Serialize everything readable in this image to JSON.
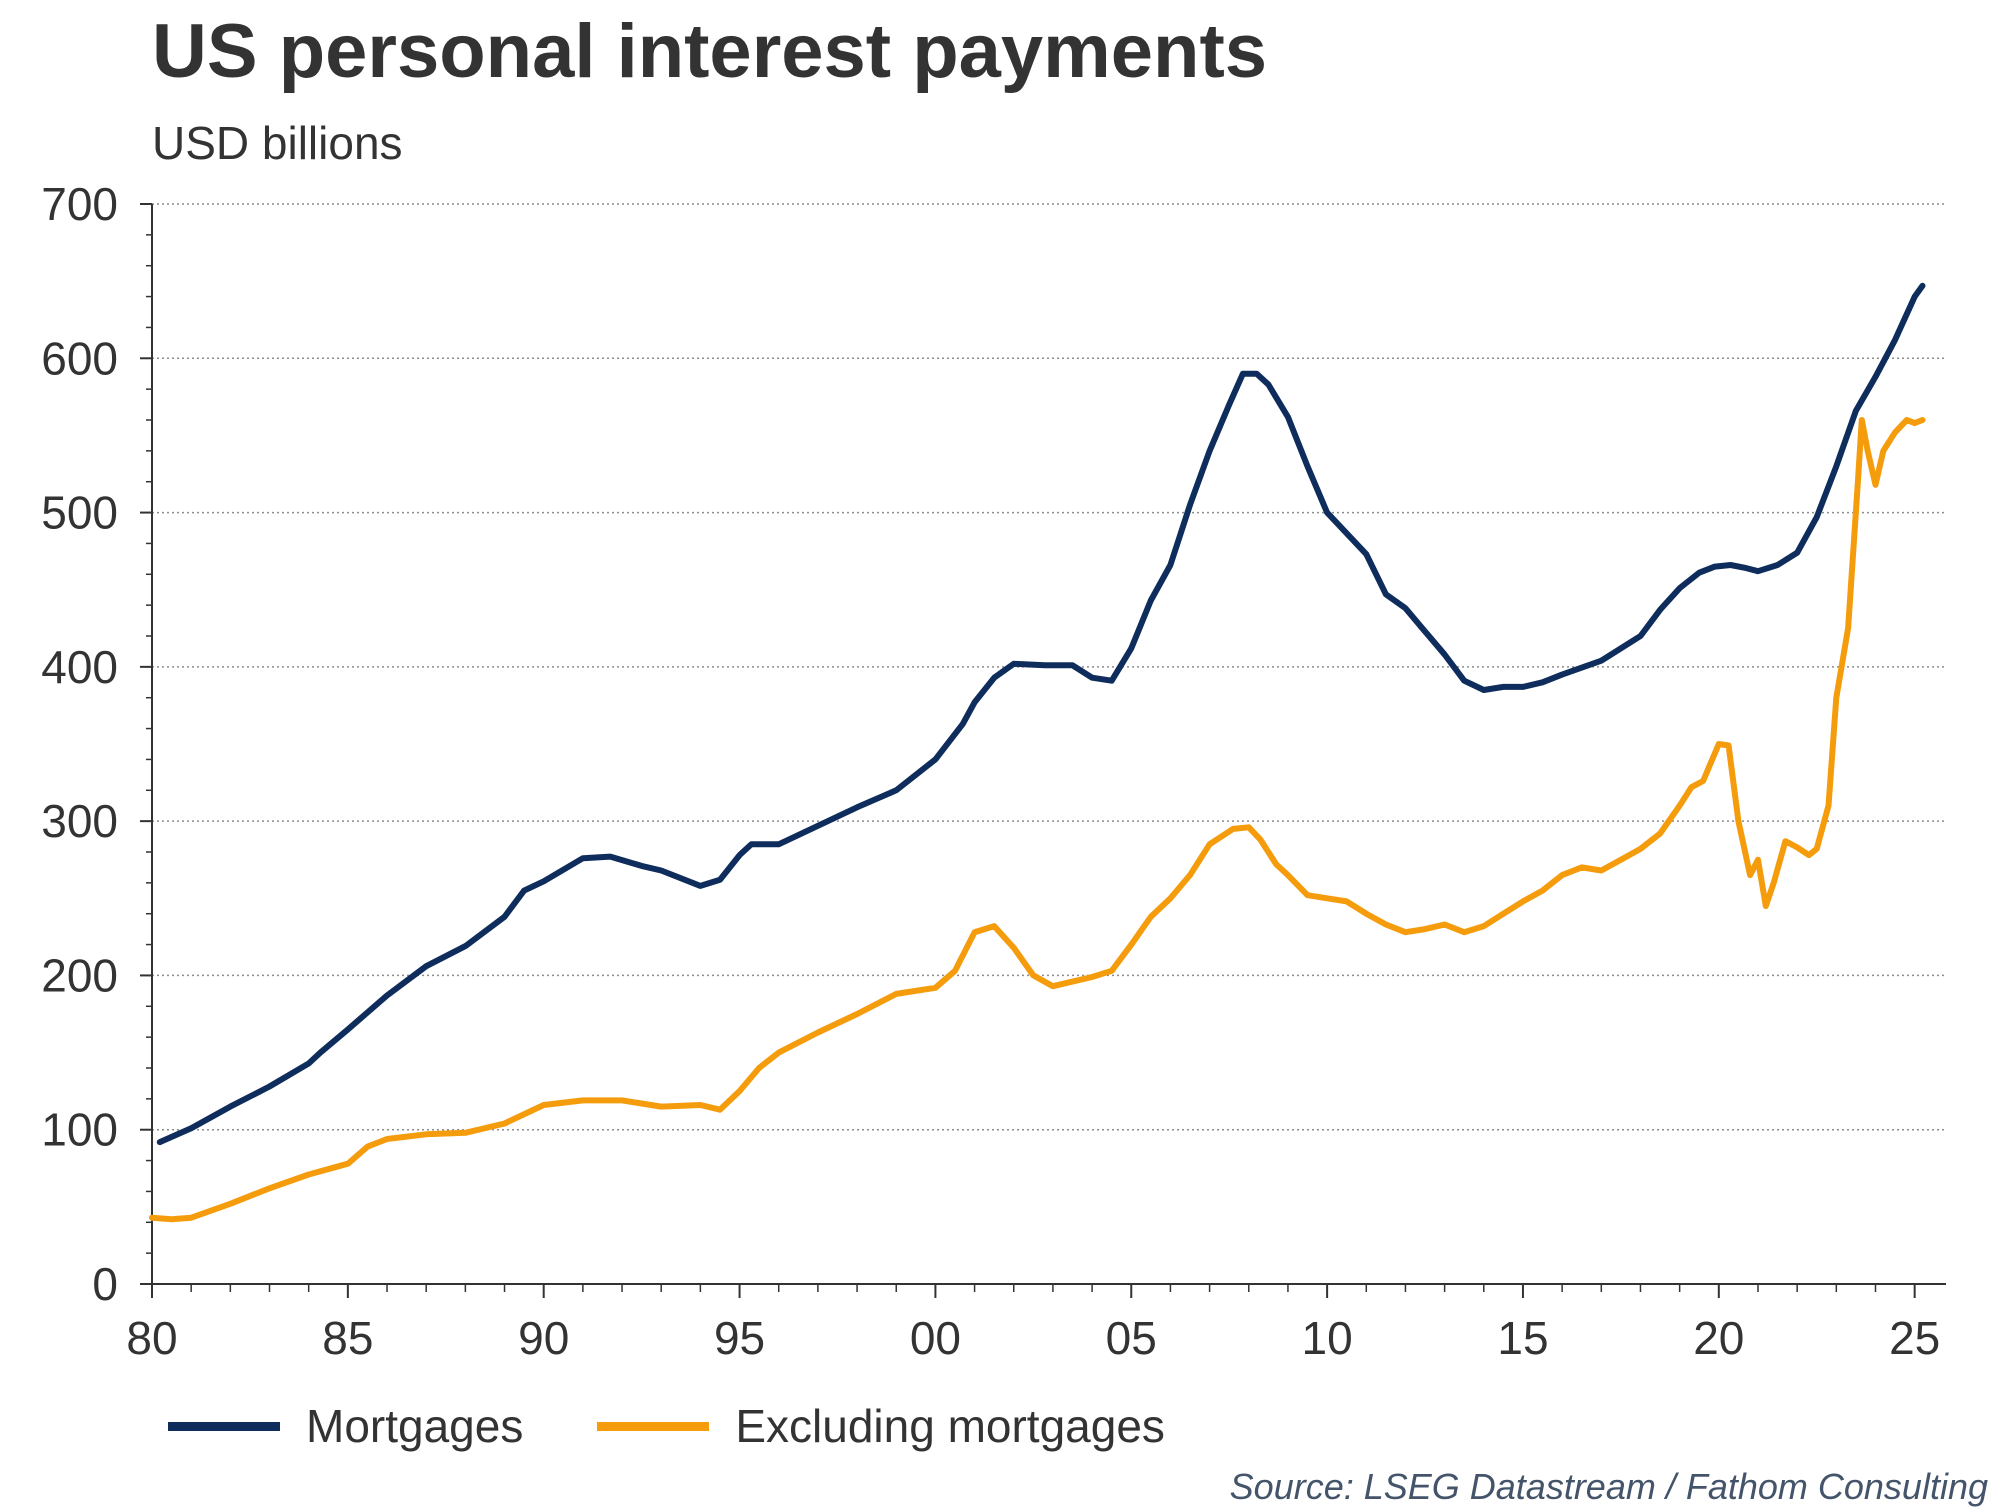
{
  "chart_data": {
    "type": "line",
    "title": "US personal interest payments",
    "subtitle": "USD billions",
    "source": "Source: LSEG Datastream / Fathom Consulting",
    "xlabel": "",
    "ylabel": "",
    "xlim": [
      1980,
      2025.8
    ],
    "ylim": [
      0,
      700
    ],
    "y_ticks": [
      0,
      100,
      200,
      300,
      400,
      500,
      600,
      700
    ],
    "x_ticks": [
      {
        "value": 1980,
        "label": "80"
      },
      {
        "value": 1985,
        "label": "85"
      },
      {
        "value": 1990,
        "label": "90"
      },
      {
        "value": 1995,
        "label": "95"
      },
      {
        "value": 2000,
        "label": "00"
      },
      {
        "value": 2005,
        "label": "05"
      },
      {
        "value": 2010,
        "label": "10"
      },
      {
        "value": 2015,
        "label": "15"
      },
      {
        "value": 2020,
        "label": "20"
      },
      {
        "value": 2025,
        "label": "25"
      }
    ],
    "grid": "horizontal dotted",
    "legend_position": "bottom-left",
    "series": [
      {
        "name": "Mortgages",
        "color": "#0e2d5c",
        "x": [
          1980.2,
          1981.0,
          1982.0,
          1983.0,
          1984.0,
          1984.3,
          1985.0,
          1985.5,
          1986.0,
          1987.0,
          1988.0,
          1989.0,
          1989.5,
          1990.0,
          1991.0,
          1991.7,
          1992.5,
          1993.0,
          1994.0,
          1994.5,
          1995.0,
          1995.3,
          1996.0,
          1997.0,
          1998.0,
          1999.0,
          2000.0,
          2000.7,
          2001.0,
          2001.5,
          2002.0,
          2002.8,
          2003.5,
          2004.0,
          2004.5,
          2005.0,
          2005.5,
          2006.0,
          2006.5,
          2007.0,
          2007.5,
          2007.85,
          2008.2,
          2008.5,
          2009.0,
          2009.5,
          2010.0,
          2011.0,
          2011.5,
          2012.0,
          2012.5,
          2013.0,
          2013.5,
          2014.0,
          2014.5,
          2015.0,
          2015.5,
          2016.0,
          2017.0,
          2018.0,
          2018.5,
          2019.0,
          2019.5,
          2019.9,
          2020.3,
          2020.7,
          2021.0,
          2021.5,
          2022.0,
          2022.5,
          2023.0,
          2023.5,
          2024.0,
          2024.5,
          2025.0,
          2025.2
        ],
        "values": [
          92,
          101,
          115,
          128,
          143,
          150,
          165,
          176,
          187,
          206,
          219,
          238,
          255,
          261,
          276,
          277,
          271,
          268,
          258,
          262,
          278,
          285,
          285,
          297,
          309,
          320,
          340,
          363,
          377,
          393,
          402,
          401,
          401,
          393,
          391,
          412,
          443,
          466,
          505,
          540,
          570,
          590,
          590,
          583,
          562,
          530,
          500,
          473,
          447,
          438,
          423,
          408,
          391,
          385,
          387,
          387,
          390,
          395,
          404,
          420,
          437,
          451,
          461,
          465,
          466,
          464,
          462,
          466,
          474,
          497,
          530,
          566,
          588,
          612,
          640,
          647
        ]
      },
      {
        "name": "Excluding mortgages",
        "color": "#f59c0d",
        "x": [
          1980.0,
          1980.5,
          1981.0,
          1982.0,
          1983.0,
          1984.0,
          1985.0,
          1985.5,
          1986.0,
          1987.0,
          1988.0,
          1989.0,
          1990.0,
          1991.0,
          1992.0,
          1993.0,
          1994.0,
          1994.5,
          1995.0,
          1995.5,
          1996.0,
          1997.0,
          1998.0,
          1999.0,
          2000.0,
          2000.5,
          2001.0,
          2001.5,
          2002.0,
          2002.5,
          2003.0,
          2003.5,
          2004.0,
          2004.5,
          2005.0,
          2005.5,
          2006.0,
          2006.5,
          2007.0,
          2007.3,
          2007.6,
          2008.0,
          2008.3,
          2008.7,
          2009.0,
          2009.5,
          2010.0,
          2010.5,
          2011.0,
          2011.5,
          2012.0,
          2012.5,
          2013.0,
          2013.5,
          2014.0,
          2014.5,
          2015.0,
          2015.5,
          2016.0,
          2016.5,
          2017.0,
          2017.5,
          2018.0,
          2018.5,
          2019.0,
          2019.3,
          2019.6,
          2020.0,
          2020.25,
          2020.5,
          2020.8,
          2021.0,
          2021.2,
          2021.4,
          2021.7,
          2022.0,
          2022.3,
          2022.5,
          2022.8,
          2023.0,
          2023.3,
          2023.55,
          2023.65,
          2023.8,
          2024.0,
          2024.2,
          2024.5,
          2024.8,
          2025.0,
          2025.2
        ],
        "values": [
          43,
          42,
          43,
          52,
          62,
          71,
          78,
          89,
          94,
          97,
          98,
          104,
          116,
          119,
          119,
          115,
          116,
          113,
          125,
          140,
          150,
          163,
          175,
          188,
          192,
          203,
          228,
          232,
          218,
          200,
          193,
          196,
          199,
          203,
          220,
          238,
          250,
          265,
          285,
          290,
          295,
          296,
          288,
          272,
          265,
          252,
          250,
          248,
          240,
          233,
          228,
          230,
          233,
          228,
          232,
          240,
          248,
          255,
          265,
          270,
          268,
          275,
          282,
          292,
          310,
          322,
          326,
          350,
          349,
          300,
          265,
          275,
          245,
          260,
          287,
          283,
          278,
          282,
          310,
          380,
          425,
          520,
          560,
          540,
          518,
          540,
          552,
          560,
          558,
          560
        ]
      }
    ]
  }
}
